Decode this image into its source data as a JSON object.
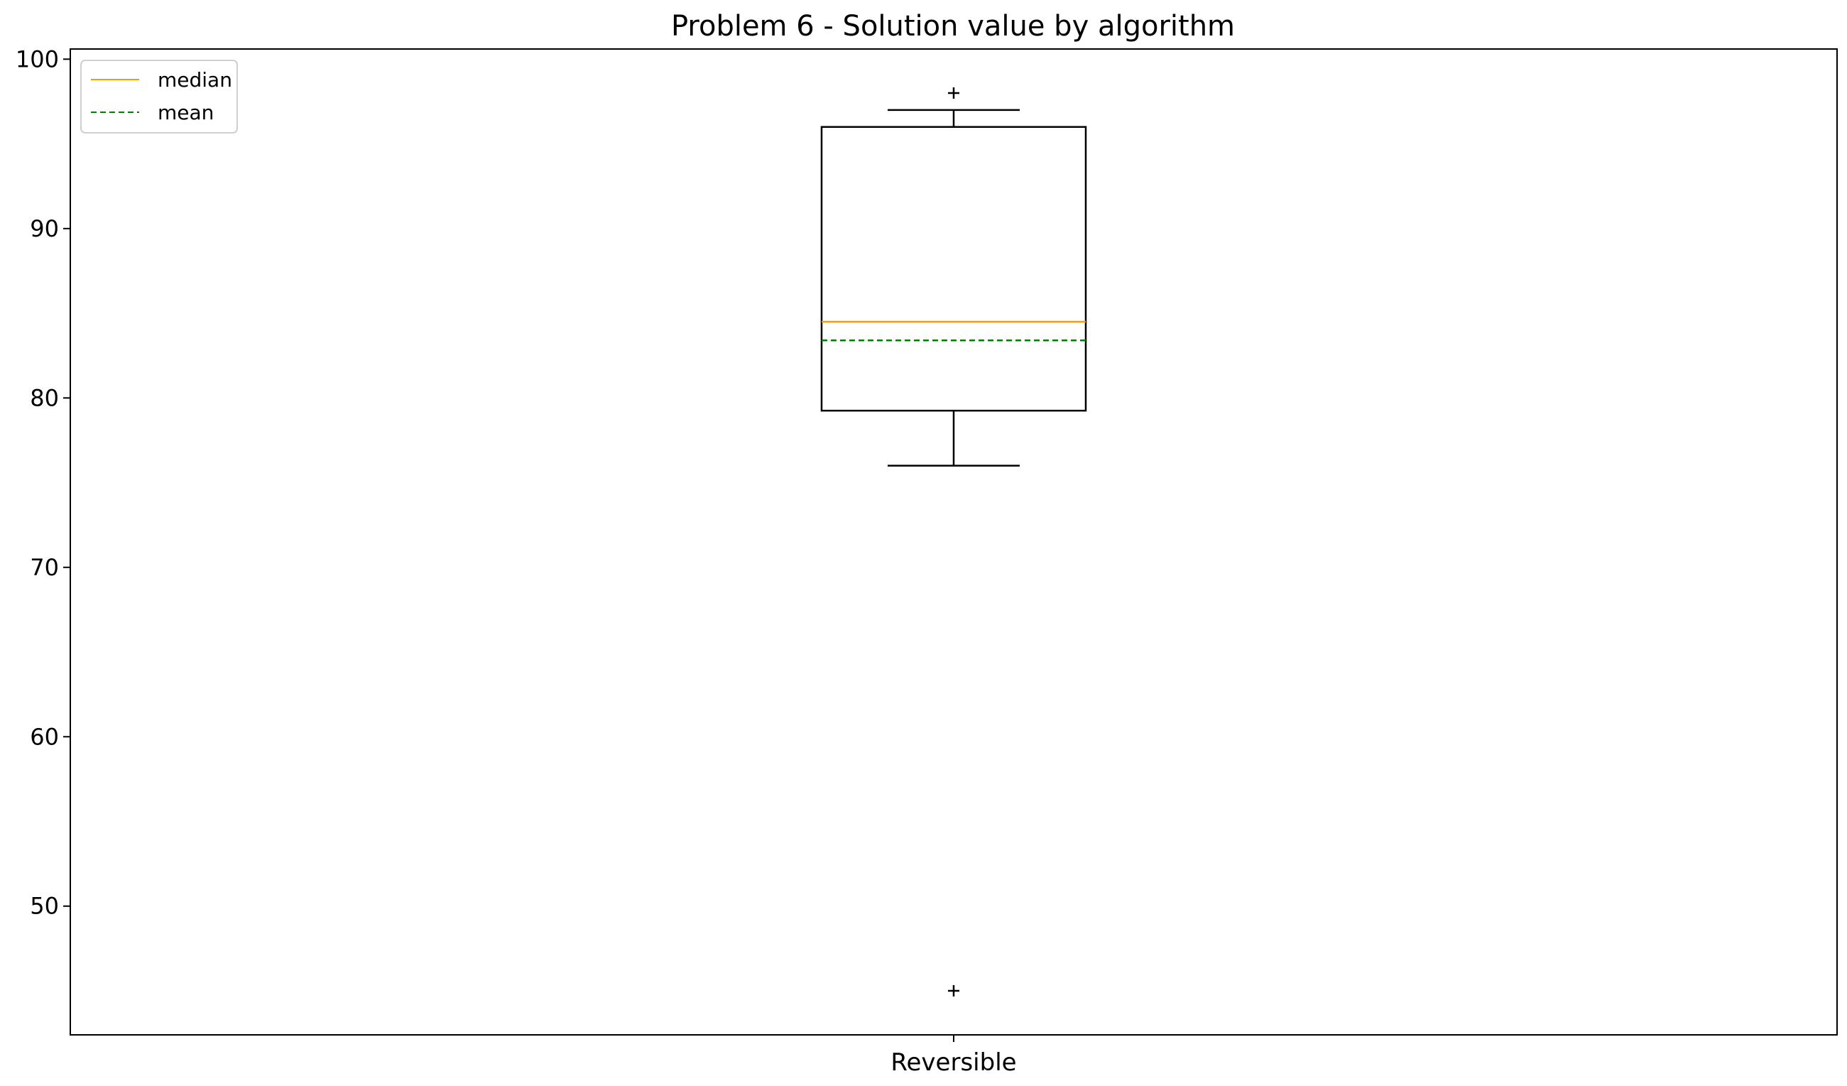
{
  "chart_data": {
    "type": "box",
    "title": "Problem 6 - Solution value by algorithm",
    "xlabel": "",
    "ylabel": "",
    "categories": [
      "Reversible"
    ],
    "ylim": [
      42.4,
      100.6
    ],
    "yticks": [
      50,
      60,
      70,
      80,
      90,
      100
    ],
    "grid": false,
    "legend": {
      "placement": "top-left",
      "entries": [
        {
          "label": "median",
          "color": "#ff9900",
          "style": "solid"
        },
        {
          "label": "mean",
          "color": "#008000",
          "style": "dashed"
        }
      ]
    },
    "boxes": [
      {
        "category": "Reversible",
        "whisker_low": 76,
        "q1": 79.25,
        "median": 84.5,
        "mean": 83.4,
        "q3": 96,
        "whisker_high": 97,
        "outliers": [
          98,
          45
        ]
      }
    ],
    "colors": {
      "box": "#000000",
      "median": "#ff9900",
      "mean": "#008000"
    }
  }
}
